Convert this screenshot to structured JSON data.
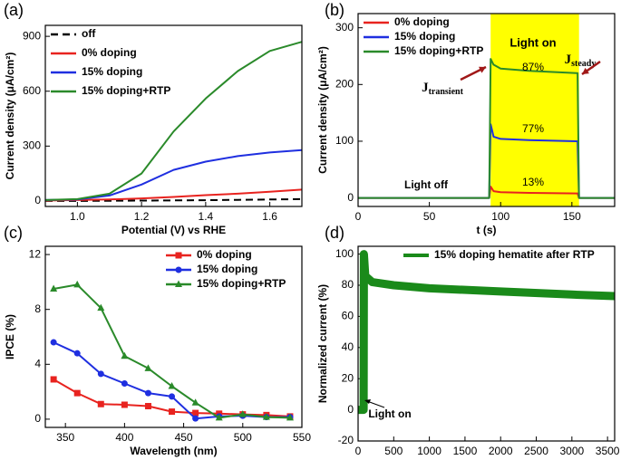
{
  "chart_data": [
    {
      "type": "line",
      "label": "(a)",
      "xlabel": "Potential (V) vs RHE",
      "ylabel": "Current density (μA/cm²)",
      "xlim": [
        0.9,
        1.7
      ],
      "ylim": [
        -30,
        960
      ],
      "xticks": [
        {
          "value": 1,
          "label": "1.0"
        },
        1.2,
        1.4,
        1.6
      ],
      "yticks": [
        0,
        300,
        600,
        900
      ],
      "legend": "upper left",
      "x": [
        0.9,
        1.0,
        1.1,
        1.2,
        1.3,
        1.4,
        1.5,
        1.6,
        1.7
      ],
      "series": [
        {
          "name": "off",
          "color": "#000000",
          "dash": "dashed",
          "values": [
            0,
            0,
            1,
            2,
            3,
            4,
            6,
            8,
            10
          ]
        },
        {
          "name": "0% doping",
          "color": "#e8231f",
          "values": [
            2,
            5,
            8,
            14,
            22,
            32,
            40,
            50,
            62
          ]
        },
        {
          "name": "15% doping",
          "color": "#1f2fe0",
          "values": [
            5,
            8,
            30,
            90,
            170,
            215,
            245,
            265,
            278
          ]
        },
        {
          "name": "15% doping+RTP",
          "color": "#2a8a2a",
          "values": [
            5,
            10,
            40,
            150,
            380,
            560,
            710,
            820,
            870
          ]
        }
      ]
    },
    {
      "type": "line",
      "label": "(b)",
      "xlabel": "t (s)",
      "ylabel": "Current density (μA/cm²)",
      "xlim": [
        0,
        180
      ],
      "ylim": [
        -15,
        325
      ],
      "xticks": [
        0,
        50,
        100,
        150
      ],
      "yticks": [
        0,
        100,
        200,
        300
      ],
      "legend": "upper left",
      "shade": {
        "xrange": [
          93,
          155
        ],
        "color": "#ffff00"
      },
      "annotations": [
        {
          "text": "Light on"
        },
        {
          "text": "Light off"
        },
        {
          "text": "87%",
          "color": "#2a8a2a"
        },
        {
          "text": "77%",
          "color": "#1f2fe0"
        },
        {
          "text": "13%",
          "color": "#e8231f"
        },
        {
          "main": "J",
          "sub": "transient"
        },
        {
          "main": "J",
          "sub": "steady"
        }
      ],
      "x": [
        0,
        92,
        93,
        95,
        100,
        120,
        154,
        155,
        180
      ],
      "series": [
        {
          "name": "0% doping",
          "color": "#e8231f",
          "values": [
            0,
            0,
            20,
            12,
            10,
            9,
            8,
            0,
            0
          ]
        },
        {
          "name": "15% doping",
          "color": "#1f2fe0",
          "values": [
            0,
            0,
            130,
            108,
            104,
            102,
            100,
            0,
            0
          ]
        },
        {
          "name": "15% doping+RTP",
          "color": "#2a8a2a",
          "values": [
            0,
            0,
            245,
            235,
            228,
            224,
            220,
            0,
            0
          ]
        }
      ]
    },
    {
      "type": "line",
      "label": "(c)",
      "xlabel": "Wavelength (nm)",
      "ylabel": "IPCE (%)",
      "xlim": [
        333,
        550
      ],
      "ylim": [
        -0.6,
        12.6
      ],
      "xticks": [
        350,
        400,
        450,
        500,
        550
      ],
      "yticks": [
        0,
        4,
        8,
        12
      ],
      "legend": "upper right",
      "x": [
        340,
        360,
        380,
        400,
        420,
        440,
        460,
        480,
        500,
        520,
        540
      ],
      "series": [
        {
          "name": "0% doping",
          "color": "#e8231f",
          "marker": "square",
          "values": [
            2.9,
            1.9,
            1.1,
            1.05,
            0.95,
            0.55,
            0.45,
            0.4,
            0.35,
            0.3,
            0.2
          ]
        },
        {
          "name": "15% doping",
          "color": "#1f2fe0",
          "marker": "circle",
          "values": [
            5.6,
            4.8,
            3.3,
            2.6,
            1.9,
            1.65,
            0.05,
            0.2,
            0.25,
            0.15,
            0.15
          ]
        },
        {
          "name": "15% doping+RTP",
          "color": "#2a8a2a",
          "marker": "triangle",
          "values": [
            9.5,
            9.8,
            8.1,
            4.6,
            3.7,
            2.4,
            1.2,
            0.1,
            0.35,
            0.15,
            0.1
          ]
        }
      ]
    },
    {
      "type": "line",
      "label": "(d)",
      "xlabel": "t (s)",
      "ylabel": "Normalized current (%)",
      "xlim": [
        0,
        3600
      ],
      "ylim": [
        -20,
        105
      ],
      "xticks": [
        0,
        500,
        1000,
        1500,
        2000,
        2500,
        3000,
        3500
      ],
      "yticks": [
        -20,
        0,
        20,
        40,
        60,
        80,
        100
      ],
      "legend": "upper center",
      "annotations": [
        {
          "text": "Light on"
        }
      ],
      "x": [
        0,
        78,
        82,
        100,
        200,
        500,
        1000,
        2000,
        3000,
        3600
      ],
      "series": [
        {
          "name": "15% doping hematite after RTP",
          "color": "#1a8a1a",
          "band": true,
          "values": [
            0,
            0,
            100,
            86,
            82,
            80,
            78,
            76,
            74,
            73
          ]
        }
      ]
    }
  ]
}
